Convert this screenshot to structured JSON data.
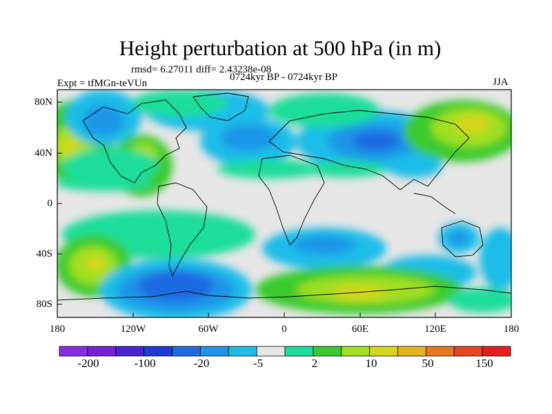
{
  "title": "Height perturbation at 500 hPa (in m)",
  "stats_text": "rmsd= 6.27011 diff= 2.43238e-08",
  "period_text": "0724kyr BP - 0724kyr BP",
  "experiment_text": "Expt = tfMGn-teVUn",
  "season_text": "JJA",
  "lat_ticks": [
    "80N",
    "40N",
    "0",
    "40S",
    "80S"
  ],
  "lon_ticks": [
    "180",
    "120W",
    "60W",
    "0",
    "60E",
    "120E",
    "180"
  ],
  "colorbar": {
    "colors": [
      "#8a2be2",
      "#7a1fd6",
      "#4a24d2",
      "#1e3bd6",
      "#1e6ae0",
      "#1e96e8",
      "#1ebde8",
      "#e6e6e6",
      "#1edd9a",
      "#3acb2e",
      "#a0df22",
      "#d6d61e",
      "#e6b21e",
      "#e6781e",
      "#e6461e",
      "#e61e1e"
    ],
    "labels": [
      "-200",
      "-100",
      "-20",
      "-5",
      "2",
      "10",
      "50",
      "150"
    ]
  },
  "chart_data": {
    "type": "map",
    "title": "Height perturbation at 500 hPa (in m)",
    "projection": "cylindrical equidistant",
    "lon_range": [
      -180,
      180
    ],
    "lat_range": [
      -90,
      90
    ],
    "season": "JJA",
    "rmsd": 6.27011,
    "diff": 2.43238e-08,
    "anomaly_regions": [
      {
        "lon": 60,
        "lat": 40,
        "sign": "negative",
        "level": "-20 to -5"
      },
      {
        "lon": -40,
        "lat": 50,
        "sign": "negative",
        "level": "-20 to -5"
      },
      {
        "lon": -160,
        "lat": 60,
        "sign": "negative",
        "level": "-20 to -5"
      },
      {
        "lon": -110,
        "lat": 45,
        "sign": "positive",
        "level": "10 to 50"
      },
      {
        "lon": 150,
        "lat": 55,
        "sign": "positive",
        "level": "10 to 50"
      },
      {
        "lon": -165,
        "lat": 40,
        "sign": "positive",
        "level": "10 to 50"
      },
      {
        "lon": 30,
        "lat": -40,
        "sign": "negative",
        "level": "-20 to -5"
      },
      {
        "lon": -75,
        "lat": -70,
        "sign": "negative",
        "level": "-100 to -20"
      },
      {
        "lon": -145,
        "lat": -50,
        "sign": "positive",
        "level": "10 to 50"
      },
      {
        "lon": 50,
        "lat": -75,
        "sign": "positive",
        "level": "10 to 50"
      },
      {
        "lon": 140,
        "lat": -25,
        "sign": "negative",
        "level": "-20 to -5"
      },
      {
        "lon": 150,
        "lat": -55,
        "sign": "negative",
        "level": "-20 to -5"
      }
    ]
  }
}
